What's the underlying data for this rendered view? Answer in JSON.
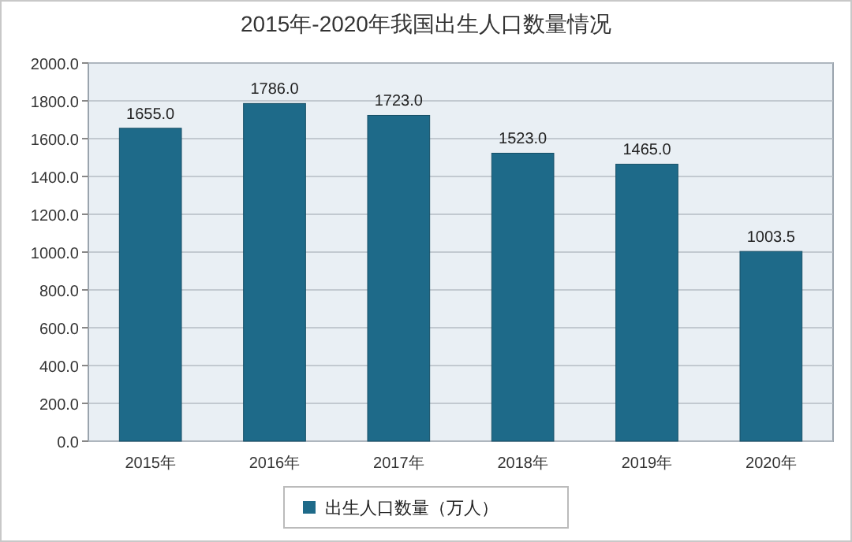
{
  "chart_data": {
    "type": "bar",
    "title": "2015年-2020年我国出生人口数量情况",
    "categories": [
      "2015年",
      "2016年",
      "2017年",
      "2018年",
      "2019年",
      "2020年"
    ],
    "series": [
      {
        "name": "出生人口数量（万人）",
        "color": "#1e6a89",
        "values": [
          1655,
          1786,
          1723,
          1523,
          1465,
          1003.5
        ],
        "value_labels": [
          "1655.0",
          "1786.0",
          "1723.0",
          "1523.0",
          "1465.0",
          "1003.5"
        ]
      }
    ],
    "ylim": [
      0,
      2000
    ],
    "yticks": [
      {
        "value": 0,
        "label": "0.0"
      },
      {
        "value": 200,
        "label": "200.0"
      },
      {
        "value": 400,
        "label": "400.0"
      },
      {
        "value": 600,
        "label": "600.0"
      },
      {
        "value": 800,
        "label": "800.0"
      },
      {
        "value": 1000,
        "label": "1000.0"
      },
      {
        "value": 1200,
        "label": "1200.0"
      },
      {
        "value": 1400,
        "label": "1400.0"
      },
      {
        "value": 1600,
        "label": "1600.0"
      },
      {
        "value": 1800,
        "label": "1800.0"
      },
      {
        "value": 2000,
        "label": "2000.0"
      }
    ],
    "grid": "y",
    "legend": "bottom"
  }
}
